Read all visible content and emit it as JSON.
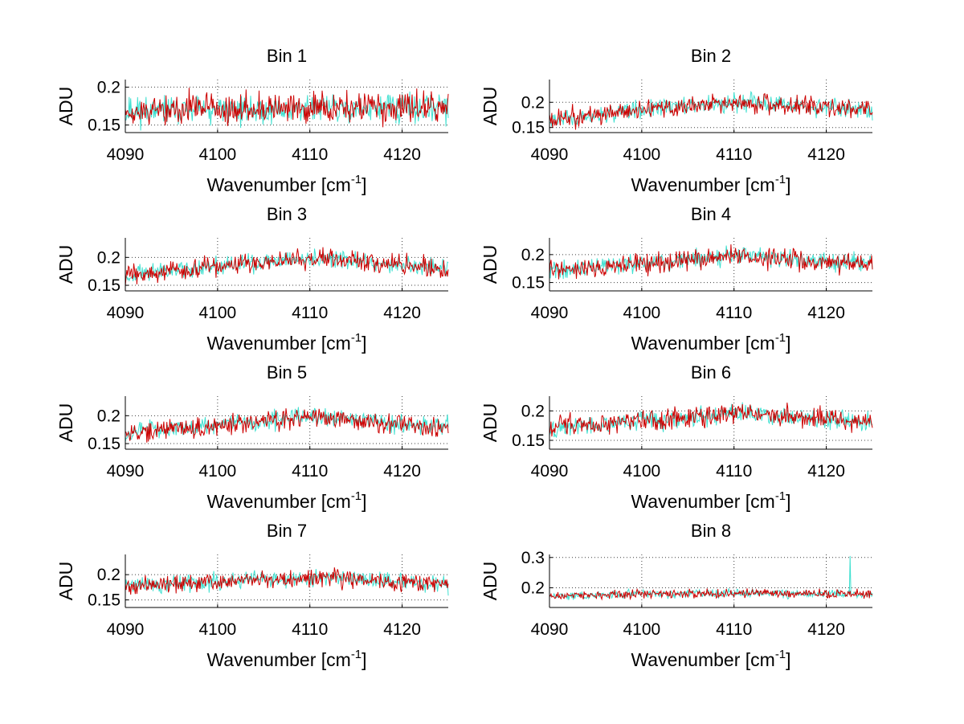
{
  "chart_data": {
    "type": "line",
    "layout": "4x2 grid of subplots",
    "series_colors": {
      "reference": "#40e0d0",
      "measured": "#cc0000"
    },
    "xlim": [
      4090,
      4125
    ],
    "xticks": [
      4090,
      4100,
      4110,
      4120
    ],
    "xticklabels": [
      "4090",
      "4100",
      "4110",
      "4120"
    ],
    "xlabel": "Wavenumber [cm",
    "xlabel_sup": "-1",
    "xlabel_suffix": "]",
    "ylabel": "ADU",
    "panels": [
      {
        "title": "Bin 1",
        "ylim": [
          0.14,
          0.21
        ],
        "yticks": [
          0.15,
          0.2
        ],
        "yticklabels": [
          "0.15",
          "0.2"
        ],
        "trend_x": [
          4090,
          4100,
          4110,
          4125
        ],
        "trend_y": [
          0.168,
          0.17,
          0.172,
          0.172
        ],
        "noise": 0.013,
        "spike": null,
        "seed": 11
      },
      {
        "title": "Bin 2",
        "ylim": [
          0.14,
          0.245
        ],
        "yticks": [
          0.15,
          0.2
        ],
        "yticklabels": [
          "0.15",
          "0.2"
        ],
        "trend_x": [
          4090,
          4100,
          4110,
          4125
        ],
        "trend_y": [
          0.165,
          0.185,
          0.2,
          0.185
        ],
        "noise": 0.012,
        "spike": null,
        "seed": 23
      },
      {
        "title": "Bin 3",
        "ylim": [
          0.14,
          0.235
        ],
        "yticks": [
          0.15,
          0.2
        ],
        "yticklabels": [
          "0.15",
          "0.2"
        ],
        "trend_x": [
          4090,
          4100,
          4110,
          4125
        ],
        "trend_y": [
          0.168,
          0.183,
          0.2,
          0.18
        ],
        "noise": 0.011,
        "spike": null,
        "seed": 37
      },
      {
        "title": "Bin 4",
        "ylim": [
          0.135,
          0.23
        ],
        "yticks": [
          0.15,
          0.2
        ],
        "yticklabels": [
          "0.15",
          "0.2"
        ],
        "trend_x": [
          4090,
          4100,
          4110,
          4125
        ],
        "trend_y": [
          0.172,
          0.183,
          0.198,
          0.182
        ],
        "noise": 0.011,
        "spike": null,
        "seed": 41
      },
      {
        "title": "Bin 5",
        "ylim": [
          0.14,
          0.235
        ],
        "yticks": [
          0.15,
          0.2
        ],
        "yticklabels": [
          "0.15",
          "0.2"
        ],
        "trend_x": [
          4090,
          4100,
          4110,
          4125
        ],
        "trend_y": [
          0.17,
          0.183,
          0.198,
          0.18
        ],
        "noise": 0.011,
        "spike": null,
        "seed": 53
      },
      {
        "title": "Bin 6",
        "ylim": [
          0.135,
          0.225
        ],
        "yticks": [
          0.15,
          0.2
        ],
        "yticklabels": [
          "0.15",
          "0.2"
        ],
        "trend_x": [
          4090,
          4100,
          4110,
          4125
        ],
        "trend_y": [
          0.172,
          0.183,
          0.197,
          0.18
        ],
        "noise": 0.011,
        "spike": null,
        "seed": 67
      },
      {
        "title": "Bin 7",
        "ylim": [
          0.135,
          0.24
        ],
        "yticks": [
          0.15,
          0.2
        ],
        "yticklabels": [
          "0.15",
          "0.2"
        ],
        "trend_x": [
          4090,
          4100,
          4110,
          4125
        ],
        "trend_y": [
          0.178,
          0.185,
          0.195,
          0.18
        ],
        "noise": 0.011,
        "spike": null,
        "seed": 71
      },
      {
        "title": "Bin 8",
        "ylim": [
          0.135,
          0.31
        ],
        "yticks": [
          0.2,
          0.3
        ],
        "yticklabels": [
          "0.2",
          "0.3"
        ],
        "trend_x": [
          4090,
          4100,
          4110,
          4125
        ],
        "trend_y": [
          0.172,
          0.18,
          0.182,
          0.178
        ],
        "noise": 0.009,
        "spike": {
          "x": 4122.6,
          "y": 0.305
        },
        "seed": 89
      }
    ]
  }
}
